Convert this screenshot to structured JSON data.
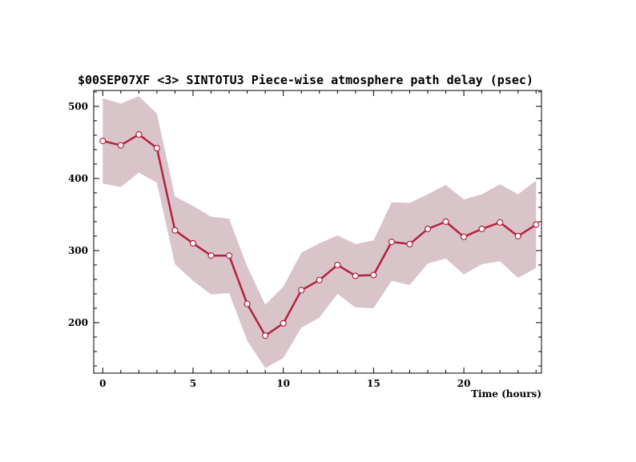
{
  "chart_data": {
    "type": "line",
    "title": "$00SEP07XF <3>  SINTOTU3  Piece-wise atmosphere path delay (psec)",
    "xlabel": "Time (hours)",
    "ylabel": "",
    "xlim": [
      -0.5,
      24.3
    ],
    "ylim": [
      130,
      522
    ],
    "x_ticks": [
      0,
      5,
      10,
      15,
      20
    ],
    "y_ticks": [
      200,
      300,
      400,
      500
    ],
    "grid": false,
    "line_color": "#b5203e",
    "band_color": "#d9c5c9",
    "series": [
      {
        "x": [
          0,
          1,
          2,
          3,
          4,
          5,
          6,
          7,
          8,
          9,
          10,
          11,
          12,
          13,
          14,
          15,
          16,
          17,
          18,
          19,
          20,
          21,
          22,
          23,
          24
        ],
        "values": [
          452,
          446,
          461,
          442,
          328,
          310,
          293,
          293,
          226,
          182,
          199,
          245,
          259,
          280,
          265,
          266,
          312,
          309,
          330,
          340,
          319,
          330,
          339,
          320,
          336
        ],
        "upper": [
          511,
          504,
          514,
          490,
          375,
          362,
          347,
          344,
          278,
          225,
          250,
          297,
          310,
          321,
          309,
          314,
          367,
          366,
          378,
          391,
          371,
          378,
          392,
          378,
          397
        ],
        "lower": [
          393,
          388,
          408,
          394,
          281,
          258,
          239,
          241,
          175,
          137,
          151,
          193,
          207,
          240,
          221,
          220,
          258,
          252,
          282,
          289,
          267,
          281,
          285,
          262,
          276
        ]
      }
    ]
  }
}
